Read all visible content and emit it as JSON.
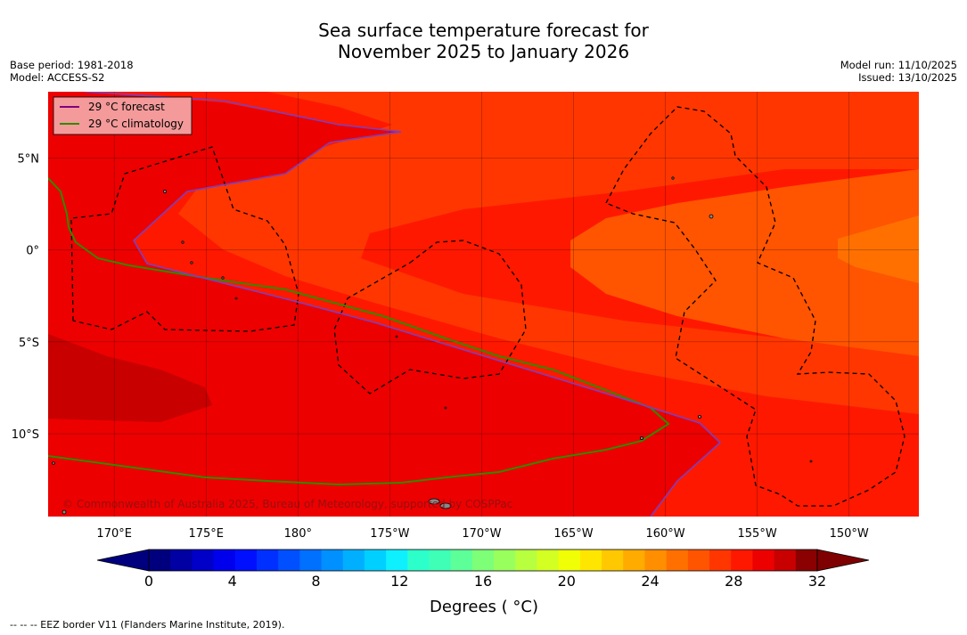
{
  "title": {
    "line1": "Sea surface temperature forecast for",
    "line2": "November 2025 to January 2026"
  },
  "meta_left": {
    "base_period": "Base period: 1981-2018",
    "model": "Model: ACCESS-S2"
  },
  "meta_right": {
    "model_run": "Model run: 11/10/2025",
    "issued": "Issued: 13/10/2025"
  },
  "legend": [
    {
      "label": "29 °C  forecast",
      "color": "#800080"
    },
    {
      "label": "29 °C  climatology",
      "color": "#2e8b00"
    }
  ],
  "copyright": "© Commonwealth of Australia 2025, Bureau of Meteorology, supported by COSPPac",
  "lon_ticks": [
    {
      "value": 170,
      "label": "170°E"
    },
    {
      "value": 175,
      "label": "175°E"
    },
    {
      "value": 180,
      "label": "180°"
    },
    {
      "value": 185,
      "label": "175°W"
    },
    {
      "value": 190,
      "label": "170°W"
    },
    {
      "value": 195,
      "label": "165°W"
    },
    {
      "value": 200,
      "label": "160°W"
    },
    {
      "value": 205,
      "label": "155°W"
    },
    {
      "value": 210,
      "label": "150°W"
    }
  ],
  "lat_ticks": [
    {
      "value": 5,
      "label": "5°N"
    },
    {
      "value": 0,
      "label": "0°"
    },
    {
      "value": -5,
      "label": "5°S"
    },
    {
      "value": -10,
      "label": "10°S"
    }
  ],
  "extent": {
    "lon_min": 166.4,
    "lon_max": 213.8,
    "lat_min": -14.5,
    "lat_max": 8.6
  },
  "colorbar": {
    "vmin": 0,
    "vmax": 32,
    "ticks": [
      0,
      4,
      8,
      12,
      16,
      20,
      24,
      28,
      32
    ],
    "tick_labels": [
      "0",
      "4",
      "8",
      "12",
      "16",
      "20",
      "24",
      "28",
      "32"
    ],
    "label": "Degrees ( °C)",
    "colors": [
      "#00007f",
      "#0000a3",
      "#0000c8",
      "#0000ed",
      "#0010ff",
      "#0030ff",
      "#0050ff",
      "#0070ff",
      "#0090ff",
      "#00b0ff",
      "#00d0ff",
      "#0ff0ff",
      "#2dffca",
      "#3fffb7",
      "#5dff99",
      "#7eff78",
      "#99ff5d",
      "#b7ff3f",
      "#d4ff22",
      "#f0ff06",
      "#ffe600",
      "#ffc800",
      "#ffab00",
      "#ff8e00",
      "#ff7000",
      "#ff5400",
      "#ff3600",
      "#ff1800",
      "#ed0000",
      "#c80000",
      "#8b0000"
    ],
    "under_color": "#00007f",
    "over_color": "#7f0000"
  },
  "footer": "--  --  -- EEZ border V11 (Flanders Marine Institute, 2019)."
}
